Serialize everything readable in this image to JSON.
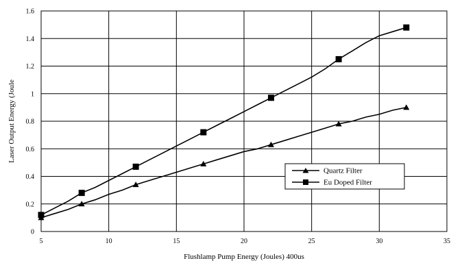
{
  "chart_data": {
    "type": "line",
    "xlabel": "Flushlamp Pump Energy (Joules) 400us",
    "ylabel": "Laser Output Energy (Joule",
    "xlim": [
      5,
      35
    ],
    "ylim": [
      0,
      1.6
    ],
    "xticks": [
      "5",
      "10",
      "15",
      "20",
      "25",
      "30",
      "35"
    ],
    "yticks": [
      "0",
      "0.2",
      "0.4",
      "0.6",
      "0.8",
      "1",
      "1.2",
      "1.4",
      "1.6"
    ],
    "grid": true,
    "legend_position": "center-right",
    "series": [
      {
        "name": "Quartz Filter",
        "marker": "triangle",
        "x": [
          5,
          6,
          7,
          8,
          9,
          10,
          11,
          12,
          13,
          14,
          15,
          16,
          17,
          18,
          19,
          20,
          21,
          22,
          23,
          24,
          25,
          26,
          27,
          28,
          29,
          30,
          31,
          32
        ],
        "y": [
          0.1,
          0.13,
          0.16,
          0.2,
          0.23,
          0.27,
          0.3,
          0.34,
          0.37,
          0.4,
          0.43,
          0.46,
          0.49,
          0.52,
          0.55,
          0.58,
          0.6,
          0.63,
          0.66,
          0.69,
          0.72,
          0.75,
          0.78,
          0.8,
          0.83,
          0.85,
          0.88,
          0.9
        ],
        "marked_x": [
          5,
          8,
          12,
          17,
          22,
          27,
          32
        ]
      },
      {
        "name": "Eu Doped Filter",
        "marker": "square",
        "x": [
          5,
          6,
          7,
          8,
          9,
          10,
          11,
          12,
          13,
          14,
          15,
          16,
          17,
          18,
          19,
          20,
          21,
          22,
          23,
          24,
          25,
          26,
          27,
          28,
          29,
          30,
          31,
          32
        ],
        "y": [
          0.12,
          0.17,
          0.22,
          0.28,
          0.32,
          0.37,
          0.42,
          0.47,
          0.52,
          0.57,
          0.62,
          0.67,
          0.72,
          0.77,
          0.82,
          0.87,
          0.92,
          0.97,
          1.02,
          1.07,
          1.12,
          1.18,
          1.25,
          1.31,
          1.37,
          1.42,
          1.45,
          1.48
        ],
        "marked_x": [
          5,
          8,
          12,
          17,
          22,
          27,
          32
        ]
      }
    ]
  }
}
